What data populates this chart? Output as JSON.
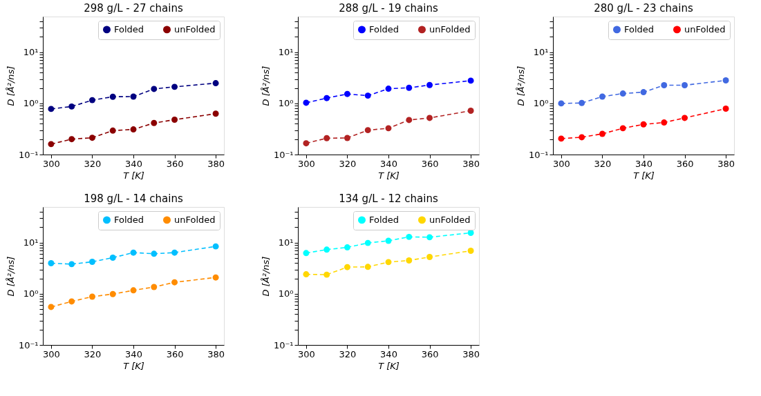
{
  "chart_data": [
    {
      "type": "line",
      "title": "298 g/L - 27 chains",
      "xlabel": "T [K]",
      "ylabel": "D [Å²/ns]",
      "x": [
        300,
        310,
        320,
        330,
        340,
        350,
        360,
        380
      ],
      "log": "y",
      "legend": "top right",
      "marker": "circle",
      "line_style": "dashed",
      "grid": false,
      "xlim": [
        296,
        384
      ],
      "xticks": [
        300,
        320,
        340,
        360,
        380
      ],
      "ylim": [
        0.1,
        50
      ],
      "yticks": [
        {
          "value": 0.1,
          "label": "10⁻¹"
        },
        {
          "value": 0.2,
          "label": null
        },
        {
          "value": 0.3,
          "label": null
        },
        {
          "value": 0.4,
          "label": null
        },
        {
          "value": 0.5,
          "label": null
        },
        {
          "value": 0.6,
          "label": null
        },
        {
          "value": 0.7,
          "label": null
        },
        {
          "value": 0.8,
          "label": null
        },
        {
          "value": 0.9,
          "label": null
        },
        {
          "value": 1,
          "label": "10⁰"
        },
        {
          "value": 2,
          "label": null
        },
        {
          "value": 3,
          "label": null
        },
        {
          "value": 4,
          "label": null
        },
        {
          "value": 5,
          "label": null
        },
        {
          "value": 6,
          "label": null
        },
        {
          "value": 7,
          "label": null
        },
        {
          "value": 8,
          "label": null
        },
        {
          "value": 9,
          "label": null
        },
        {
          "value": 10,
          "label": "10¹"
        },
        {
          "value": 20,
          "label": null
        },
        {
          "value": 30,
          "label": null
        },
        {
          "value": 40,
          "label": null
        }
      ],
      "series": [
        {
          "name": "Folded",
          "color": "#000080",
          "values": [
            0.78,
            0.87,
            1.16,
            1.35,
            1.36,
            1.92,
            2.11,
            2.49
          ]
        },
        {
          "name": "unFolded",
          "color": "#8b0000",
          "values": [
            0.16,
            0.2,
            0.213,
            0.294,
            0.31,
            0.414,
            0.48,
            0.63
          ]
        }
      ]
    },
    {
      "type": "line",
      "title": "288 g/L - 19 chains",
      "xlabel": "T [K]",
      "ylabel": "D [Å²/ns]",
      "x": [
        300,
        310,
        320,
        330,
        340,
        350,
        360,
        380
      ],
      "log": "y",
      "legend": "top right",
      "marker": "circle",
      "line_style": "dashed",
      "grid": false,
      "xlim": [
        296,
        384
      ],
      "xticks": [
        300,
        320,
        340,
        360,
        380
      ],
      "ylim": [
        0.1,
        50
      ],
      "yticks": [
        {
          "value": 0.1,
          "label": "10⁻¹"
        },
        {
          "value": 0.2,
          "label": null
        },
        {
          "value": 0.3,
          "label": null
        },
        {
          "value": 0.4,
          "label": null
        },
        {
          "value": 0.5,
          "label": null
        },
        {
          "value": 0.6,
          "label": null
        },
        {
          "value": 0.7,
          "label": null
        },
        {
          "value": 0.8,
          "label": null
        },
        {
          "value": 0.9,
          "label": null
        },
        {
          "value": 1,
          "label": "10⁰"
        },
        {
          "value": 2,
          "label": null
        },
        {
          "value": 3,
          "label": null
        },
        {
          "value": 4,
          "label": null
        },
        {
          "value": 5,
          "label": null
        },
        {
          "value": 6,
          "label": null
        },
        {
          "value": 7,
          "label": null
        },
        {
          "value": 8,
          "label": null
        },
        {
          "value": 9,
          "label": null
        },
        {
          "value": 10,
          "label": "10¹"
        },
        {
          "value": 20,
          "label": null
        },
        {
          "value": 30,
          "label": null
        },
        {
          "value": 40,
          "label": null
        }
      ],
      "series": [
        {
          "name": "Folded",
          "color": "#0000ff",
          "values": [
            1.03,
            1.27,
            1.53,
            1.42,
            1.94,
            2.02,
            2.29,
            2.79
          ]
        },
        {
          "name": "unFolded",
          "color": "#b22222",
          "values": [
            0.166,
            0.209,
            0.211,
            0.3,
            0.327,
            0.474,
            0.52,
            0.72
          ]
        }
      ]
    },
    {
      "type": "line",
      "title": "280 g/L - 23 chains",
      "xlabel": "T [K]",
      "ylabel": "D [Å²/ns]",
      "x": [
        300,
        310,
        320,
        330,
        340,
        350,
        360,
        380
      ],
      "log": "y",
      "legend": "top right",
      "marker": "circle",
      "line_style": "dashed",
      "grid": false,
      "xlim": [
        296,
        384
      ],
      "xticks": [
        300,
        320,
        340,
        360,
        380
      ],
      "ylim": [
        0.1,
        50
      ],
      "yticks": [
        {
          "value": 0.1,
          "label": "10⁻¹"
        },
        {
          "value": 0.2,
          "label": null
        },
        {
          "value": 0.3,
          "label": null
        },
        {
          "value": 0.4,
          "label": null
        },
        {
          "value": 0.5,
          "label": null
        },
        {
          "value": 0.6,
          "label": null
        },
        {
          "value": 0.7,
          "label": null
        },
        {
          "value": 0.8,
          "label": null
        },
        {
          "value": 0.9,
          "label": null
        },
        {
          "value": 1,
          "label": "10⁰"
        },
        {
          "value": 2,
          "label": null
        },
        {
          "value": 3,
          "label": null
        },
        {
          "value": 4,
          "label": null
        },
        {
          "value": 5,
          "label": null
        },
        {
          "value": 6,
          "label": null
        },
        {
          "value": 7,
          "label": null
        },
        {
          "value": 8,
          "label": null
        },
        {
          "value": 9,
          "label": null
        },
        {
          "value": 10,
          "label": "10¹"
        },
        {
          "value": 20,
          "label": null
        },
        {
          "value": 30,
          "label": null
        },
        {
          "value": 40,
          "label": null
        }
      ],
      "series": [
        {
          "name": "Folded",
          "color": "#4169e1",
          "values": [
            1.0,
            1.02,
            1.36,
            1.56,
            1.66,
            2.27,
            2.27,
            2.82
          ]
        },
        {
          "name": "unFolded",
          "color": "#ff0000",
          "values": [
            0.205,
            0.218,
            0.254,
            0.327,
            0.389,
            0.423,
            0.52,
            0.79
          ]
        }
      ]
    },
    {
      "type": "line",
      "title": "198 g/L - 14 chains",
      "xlabel": "T [K]",
      "ylabel": "D [Å²/ns]",
      "x": [
        300,
        310,
        320,
        330,
        340,
        350,
        360,
        380
      ],
      "log": "y",
      "legend": "top right",
      "marker": "circle",
      "line_style": "dashed",
      "grid": false,
      "xlim": [
        296,
        384
      ],
      "xticks": [
        300,
        320,
        340,
        360,
        380
      ],
      "ylim": [
        0.1,
        50
      ],
      "yticks": [
        {
          "value": 0.1,
          "label": "10⁻¹"
        },
        {
          "value": 0.2,
          "label": null
        },
        {
          "value": 0.3,
          "label": null
        },
        {
          "value": 0.4,
          "label": null
        },
        {
          "value": 0.5,
          "label": null
        },
        {
          "value": 0.6,
          "label": null
        },
        {
          "value": 0.7,
          "label": null
        },
        {
          "value": 0.8,
          "label": null
        },
        {
          "value": 0.9,
          "label": null
        },
        {
          "value": 1,
          "label": "10⁰"
        },
        {
          "value": 2,
          "label": null
        },
        {
          "value": 3,
          "label": null
        },
        {
          "value": 4,
          "label": null
        },
        {
          "value": 5,
          "label": null
        },
        {
          "value": 6,
          "label": null
        },
        {
          "value": 7,
          "label": null
        },
        {
          "value": 8,
          "label": null
        },
        {
          "value": 9,
          "label": null
        },
        {
          "value": 10,
          "label": "10¹"
        },
        {
          "value": 20,
          "label": null
        },
        {
          "value": 30,
          "label": null
        },
        {
          "value": 40,
          "label": null
        }
      ],
      "series": [
        {
          "name": "Folded",
          "color": "#00bfff",
          "values": [
            3.97,
            3.81,
            4.23,
            5.1,
            6.4,
            6.08,
            6.4,
            8.47
          ]
        },
        {
          "name": "unFolded",
          "color": "#ff8c00",
          "values": [
            0.553,
            0.71,
            0.88,
            0.99,
            1.17,
            1.36,
            1.68,
            2.09
          ]
        }
      ]
    },
    {
      "type": "line",
      "title": "134 g/L - 12 chains",
      "xlabel": "T [K]",
      "ylabel": "D [Å²/ns]",
      "x": [
        300,
        310,
        320,
        330,
        340,
        350,
        360,
        380
      ],
      "log": "y",
      "legend": "top right",
      "marker": "circle",
      "line_style": "dashed",
      "grid": false,
      "xlim": [
        296,
        384
      ],
      "xticks": [
        300,
        320,
        340,
        360,
        380
      ],
      "ylim": [
        0.1,
        50
      ],
      "yticks": [
        {
          "value": 0.1,
          "label": "10⁻¹"
        },
        {
          "value": 0.2,
          "label": null
        },
        {
          "value": 0.3,
          "label": null
        },
        {
          "value": 0.4,
          "label": null
        },
        {
          "value": 0.5,
          "label": null
        },
        {
          "value": 0.6,
          "label": null
        },
        {
          "value": 0.7,
          "label": null
        },
        {
          "value": 0.8,
          "label": null
        },
        {
          "value": 0.9,
          "label": null
        },
        {
          "value": 1,
          "label": "10⁰"
        },
        {
          "value": 2,
          "label": null
        },
        {
          "value": 3,
          "label": null
        },
        {
          "value": 4,
          "label": null
        },
        {
          "value": 5,
          "label": null
        },
        {
          "value": 6,
          "label": null
        },
        {
          "value": 7,
          "label": null
        },
        {
          "value": 8,
          "label": null
        },
        {
          "value": 9,
          "label": null
        },
        {
          "value": 10,
          "label": "10¹"
        },
        {
          "value": 20,
          "label": null
        },
        {
          "value": 30,
          "label": null
        },
        {
          "value": 40,
          "label": null
        }
      ],
      "series": [
        {
          "name": "Folded",
          "color": "#00ffff",
          "values": [
            6.27,
            7.33,
            8.1,
            9.9,
            10.9,
            13.0,
            12.8,
            15.6
          ]
        },
        {
          "name": "unFolded",
          "color": "#ffd700",
          "values": [
            2.41,
            2.37,
            3.33,
            3.37,
            4.18,
            4.5,
            5.25,
            6.95
          ]
        }
      ]
    }
  ]
}
